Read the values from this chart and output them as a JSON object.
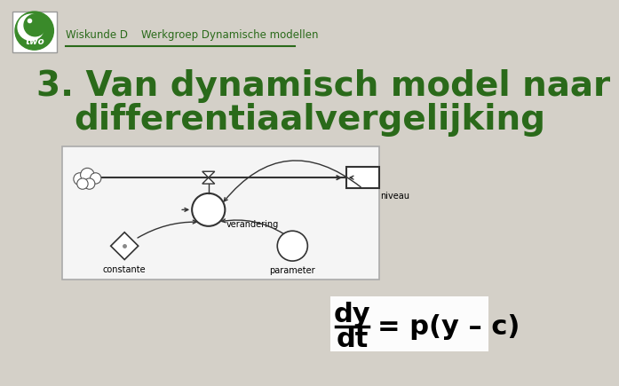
{
  "bg_color": "#d4d0c8",
  "logo_bg": "#3a8a2a",
  "logo_inner_color": "#5ab84a",
  "header_text": "Wiskunde D    Werkgroep Dynamische modellen",
  "header_text_color": "#2a6a1a",
  "header_underline_color": "#2a6a1a",
  "title_line1": "3. Van dynamisch model naar",
  "title_line2": "differentiaalvergelijking",
  "title_color": "#2a6a1a",
  "title_fontsize": 28,
  "diagram_box_color": "#f5f5f5",
  "diagram_border_color": "#aaaaaa",
  "label_niveau": "niveau",
  "label_verandering": "verandering",
  "label_constante": "constante",
  "label_parameter": "parameter",
  "formula_color": "#000000"
}
